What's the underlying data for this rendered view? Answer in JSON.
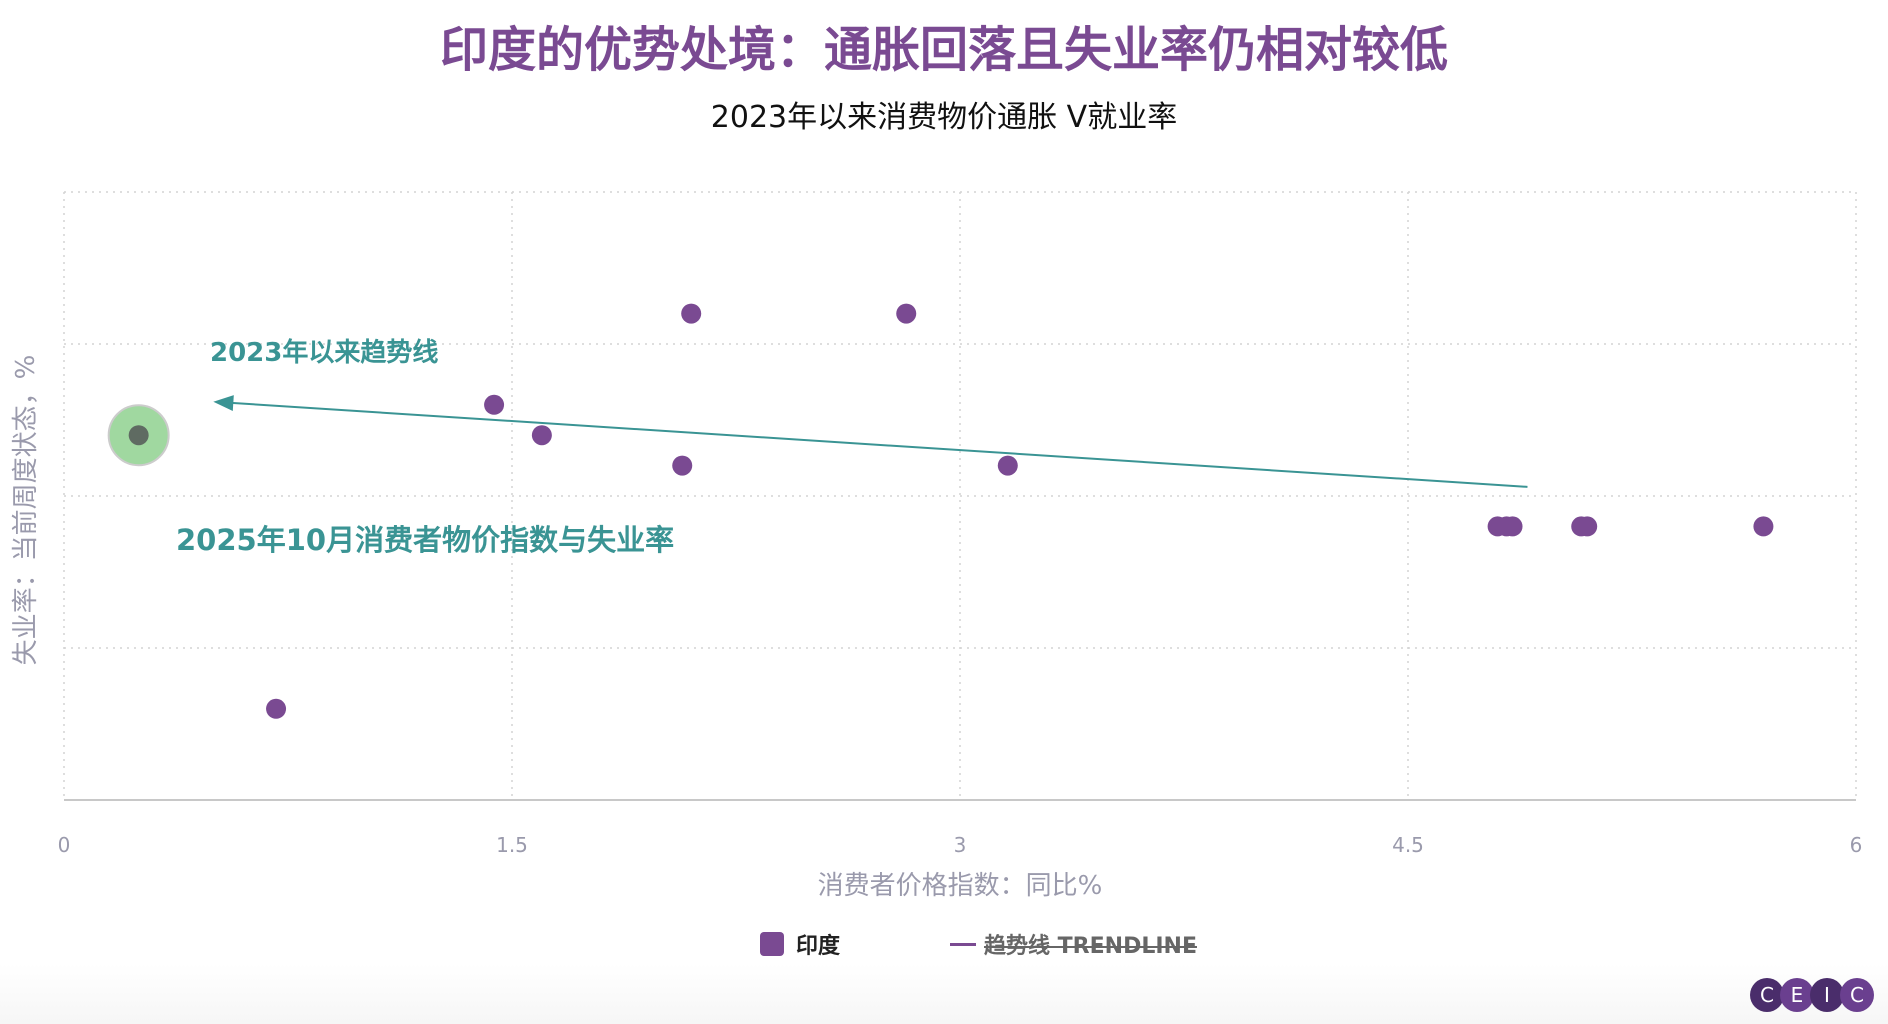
{
  "chart_data": {
    "type": "scatter",
    "title": "印度的优势处境：通胀回落且失业率仍相对较低",
    "subtitle": "2023年以来消费物价通胀 V就业率",
    "xlabel": "消费者价格指数：同比%",
    "ylabel": "失业率：当前周度状态，%",
    "xlim": [
      0,
      6
    ],
    "x_ticks": [
      "0",
      "1.5",
      "3",
      "4.5",
      "6"
    ],
    "ylim": [
      7.4,
      9.4
    ],
    "grid": true,
    "legend_position": "bottom-center",
    "series": [
      {
        "name": "印度",
        "color": "#7a4a92",
        "points": [
          {
            "x": 0.25,
            "y": 8.6
          },
          {
            "x": 0.71,
            "y": 7.7
          },
          {
            "x": 1.44,
            "y": 8.7
          },
          {
            "x": 1.6,
            "y": 8.6
          },
          {
            "x": 2.07,
            "y": 8.5
          },
          {
            "x": 2.1,
            "y": 9.0
          },
          {
            "x": 2.82,
            "y": 9.0
          },
          {
            "x": 3.16,
            "y": 8.5
          },
          {
            "x": 4.8,
            "y": 8.3
          },
          {
            "x": 4.83,
            "y": 8.3
          },
          {
            "x": 4.85,
            "y": 8.3
          },
          {
            "x": 5.08,
            "y": 8.3
          },
          {
            "x": 5.1,
            "y": 8.3
          },
          {
            "x": 5.69,
            "y": 8.3
          }
        ]
      },
      {
        "name": "趋势线 TRENDLINE",
        "type": "line",
        "color": "#7a4a92",
        "hidden": true
      }
    ],
    "trendline": {
      "color": "#3a9494",
      "start": {
        "x": 0.5,
        "y": 8.71
      },
      "end": {
        "x": 4.9,
        "y": 8.43
      }
    },
    "highlight_point": {
      "x": 0.25,
      "y": 8.6,
      "color": "#8fd18f"
    },
    "annotations": {
      "trend": "2023年以来趋势线",
      "latest": "2025年10月消费者物价指数与失业率"
    }
  },
  "legend": {
    "india": "印度",
    "trendline": "趋势线 TRENDLINE"
  },
  "logo": [
    "C",
    "E",
    "I",
    "C"
  ]
}
